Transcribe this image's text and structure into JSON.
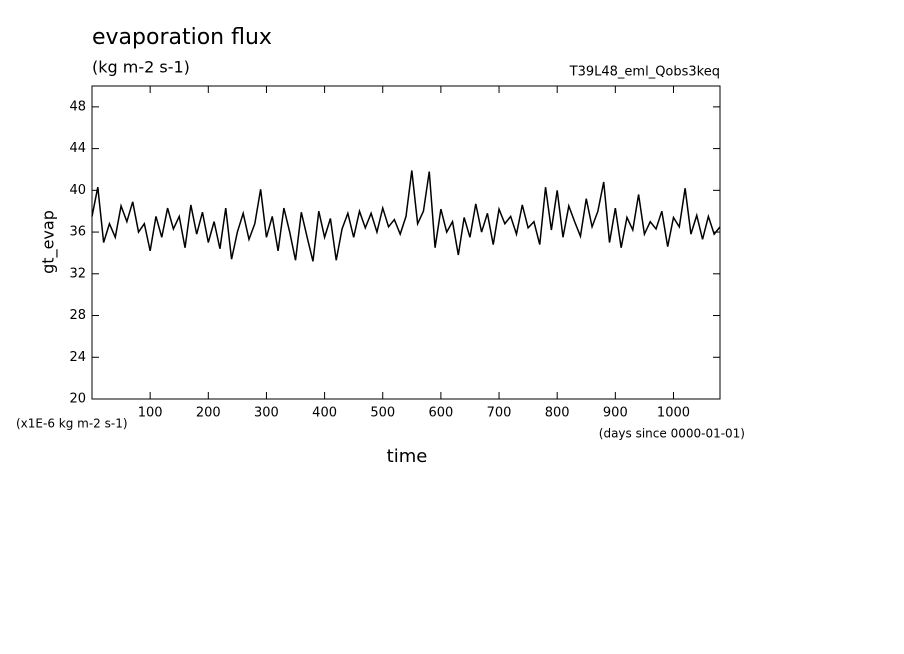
{
  "chart_data": {
    "type": "line",
    "title": "evaporation flux",
    "subtitle": "(kg m-2 s-1)",
    "annotation": "T39L48_eml_Qobs3keq",
    "y_label": "gt_evap",
    "y_unit": "(x1E-6 kg m-2 s-1)",
    "x_label": "time",
    "x_unit": "(days since 0000-01-01)",
    "color": "#000000",
    "xlim": [
      0,
      1080
    ],
    "ylim": [
      20,
      50
    ],
    "xticks": [
      100,
      200,
      300,
      400,
      500,
      600,
      700,
      800,
      900,
      1000
    ],
    "yticks": [
      20,
      24,
      28,
      32,
      36,
      40,
      44,
      48
    ],
    "x": [
      0,
      10,
      20,
      30,
      40,
      50,
      60,
      70,
      80,
      90,
      100,
      110,
      120,
      130,
      140,
      150,
      160,
      170,
      180,
      190,
      200,
      210,
      220,
      230,
      240,
      250,
      260,
      270,
      280,
      290,
      300,
      310,
      320,
      330,
      340,
      350,
      360,
      370,
      380,
      390,
      400,
      410,
      420,
      430,
      440,
      450,
      460,
      470,
      480,
      490,
      500,
      510,
      520,
      530,
      540,
      550,
      560,
      570,
      580,
      590,
      600,
      610,
      620,
      630,
      640,
      650,
      660,
      670,
      680,
      690,
      700,
      710,
      720,
      730,
      740,
      750,
      760,
      770,
      780,
      790,
      800,
      810,
      820,
      830,
      840,
      850,
      860,
      870,
      880,
      890,
      900,
      910,
      920,
      930,
      940,
      950,
      960,
      970,
      980,
      990,
      1000,
      1010,
      1020,
      1030,
      1040,
      1050,
      1060,
      1070,
      1080
    ],
    "values": [
      37.5,
      40.3,
      35.0,
      36.8,
      35.5,
      38.5,
      37.0,
      38.9,
      36.0,
      36.8,
      34.2,
      37.5,
      35.5,
      38.3,
      36.3,
      37.5,
      34.5,
      38.6,
      35.8,
      37.9,
      35.0,
      37.0,
      34.4,
      38.3,
      33.4,
      36.0,
      37.8,
      35.3,
      36.8,
      40.1,
      35.5,
      37.5,
      34.2,
      38.3,
      36.0,
      33.3,
      37.9,
      35.5,
      33.2,
      38.0,
      35.5,
      37.3,
      33.3,
      36.3,
      37.8,
      35.5,
      38.0,
      36.4,
      37.8,
      36.0,
      38.3,
      36.5,
      37.2,
      35.8,
      37.5,
      41.9,
      36.8,
      38.0,
      41.8,
      34.5,
      38.2,
      36.0,
      37.0,
      33.8,
      37.4,
      35.5,
      38.7,
      36.0,
      37.8,
      34.8,
      38.2,
      36.8,
      37.5,
      35.8,
      38.6,
      36.4,
      37.0,
      34.8,
      40.3,
      36.2,
      40.0,
      35.5,
      38.5,
      37.0,
      35.6,
      39.2,
      36.5,
      38.0,
      40.8,
      35.0,
      38.3,
      34.5,
      37.4,
      36.2,
      39.6,
      35.8,
      37.0,
      36.3,
      38.0,
      34.6,
      37.4,
      36.5,
      40.2,
      35.8,
      37.6,
      35.3,
      37.5,
      35.8,
      36.5
    ]
  }
}
